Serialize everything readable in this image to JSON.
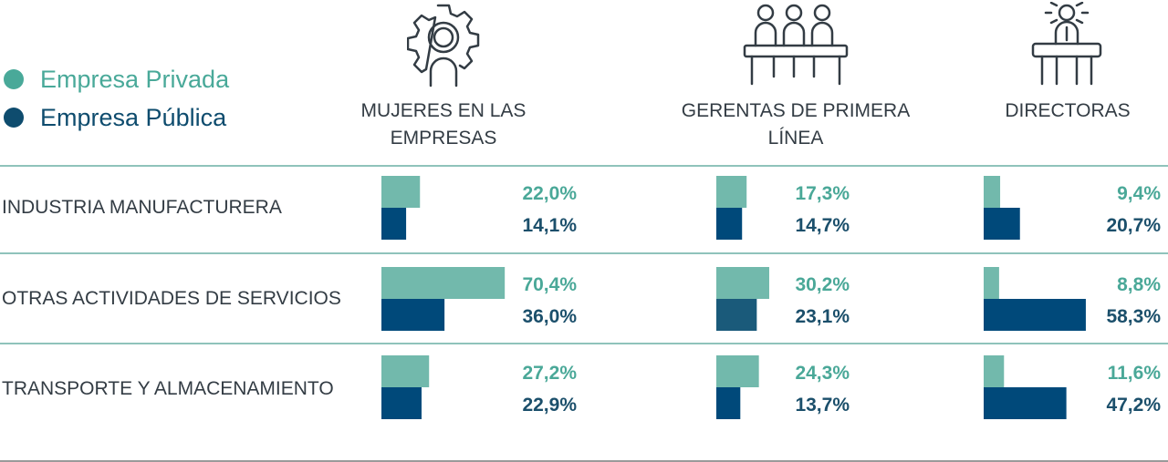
{
  "colors": {
    "private": "#72b9ac",
    "public": "#00497a",
    "public_alt": "#1a5a7a",
    "text": "#333c44",
    "private_text": "#4aa898",
    "public_text": "#1b4f6b"
  },
  "legend": [
    {
      "label": "Empresa Privada",
      "color": "#49a999"
    },
    {
      "label": "Empresa Pública",
      "color": "#0e4c6e"
    }
  ],
  "columns": [
    {
      "label_lines": [
        "MUJERES EN LAS",
        "EMPRESAS"
      ],
      "icon": "gear-person-icon"
    },
    {
      "label_lines": [
        "GERENTAS DE PRIMERA",
        "LÍNEA"
      ],
      "icon": "three-people-table-icon"
    },
    {
      "label_lines": [
        "DIRECTORAS"
      ],
      "icon": "speaker-podium-icon"
    }
  ],
  "chart_data": {
    "type": "bar",
    "orientation": "horizontal",
    "categories": [
      "INDUSTRIA MANUFACTURERA",
      "OTRAS ACTIVIDADES DE SERVICIOS",
      "TRANSPORTE Y ALMACENAMIENTO"
    ],
    "groups": [
      "MUJERES EN LAS EMPRESAS",
      "GERENTAS DE PRIMERA LÍNEA",
      "DIRECTORAS"
    ],
    "series": [
      {
        "name": "Empresa Privada",
        "values": [
          [
            22.0,
            17.3,
            9.4
          ],
          [
            70.4,
            30.2,
            8.8
          ],
          [
            27.2,
            24.3,
            11.6
          ]
        ],
        "labels": [
          [
            "22,0%",
            "17,3%",
            "9,4%"
          ],
          [
            "70,4%",
            "30,2%",
            "8,8%"
          ],
          [
            "27,2%",
            "24,3%",
            "11,6%"
          ]
        ]
      },
      {
        "name": "Empresa Pública",
        "values": [
          [
            14.1,
            14.7,
            20.7
          ],
          [
            36.0,
            23.1,
            58.3
          ],
          [
            22.9,
            13.7,
            47.2
          ]
        ],
        "labels": [
          [
            "14,1%",
            "14,7%",
            "20,7%"
          ],
          [
            "36,0%",
            "23,1%",
            "58,3%"
          ],
          [
            "22,9%",
            "13,7%",
            "47,2%"
          ]
        ]
      }
    ],
    "unit": "%"
  }
}
